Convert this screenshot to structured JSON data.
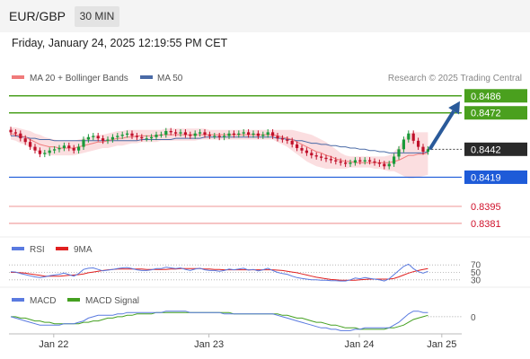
{
  "header": {
    "symbol": "EUR/GBP",
    "timeframe": "30 MIN",
    "datetime": "Friday, January 24, 2025 12:19:55 PM CET"
  },
  "legend": {
    "ma20_label": "MA 20 + Bollinger Bands",
    "ma50_label": "MA 50",
    "credit": "Research © 2025 Trading Central",
    "rsi_label": "RSI",
    "rsi_ma_label": "9MA",
    "macd_label": "MACD",
    "macd_signal_label": "MACD Signal"
  },
  "colors": {
    "bull": "#1a9a3a",
    "bear": "#c0102a",
    "ma20": "#f07a7a",
    "ma50": "#4a6aa6",
    "band_fill": "#f9d3d6",
    "green_level": "#4aa01e",
    "blue_level": "#1e5bd8",
    "red_level": "#f0a0a0",
    "red_text": "#d0102a",
    "price_box": "#2a2a2a",
    "arrow": "#2a5a9a",
    "rsi": "#5a7ae0",
    "rsi_ma": "#e02020",
    "macd": "#5a7ae0",
    "macd_signal": "#44a020"
  },
  "chart_data": {
    "type": "candlestick",
    "timeframe": "30 MIN",
    "x_tick_labels": [
      "Jan 22",
      "Jan 23",
      "Jan 24",
      "Jan 25"
    ],
    "ylim": [
      0.8375,
      0.8491
    ],
    "levels": {
      "resistance": [
        0.8486,
        0.8472
      ],
      "current": 0.8442,
      "pivot": 0.8419,
      "support": [
        0.8395,
        0.8381
      ]
    },
    "forecast_arrow": {
      "from": 0.8442,
      "to": 0.8486
    },
    "closes": [
      0.8456,
      0.8455,
      0.8451,
      0.8448,
      0.8444,
      0.8441,
      0.8438,
      0.8439,
      0.8441,
      0.8442,
      0.8443,
      0.8445,
      0.8443,
      0.8441,
      0.8444,
      0.845,
      0.8452,
      0.8453,
      0.8451,
      0.8449,
      0.845,
      0.8452,
      0.8453,
      0.8454,
      0.8455,
      0.8453,
      0.8452,
      0.8451,
      0.8451,
      0.8452,
      0.8454,
      0.8454,
      0.8457,
      0.8456,
      0.8455,
      0.8456,
      0.8454,
      0.8453,
      0.8455,
      0.8456,
      0.8454,
      0.8453,
      0.8453,
      0.8452,
      0.8453,
      0.8455,
      0.8454,
      0.8455,
      0.8456,
      0.8454,
      0.8455,
      0.8453,
      0.8454,
      0.8456,
      0.8453,
      0.8451,
      0.845,
      0.8449,
      0.8446,
      0.8443,
      0.8441,
      0.8439,
      0.8437,
      0.8436,
      0.8435,
      0.8434,
      0.8433,
      0.8432,
      0.8431,
      0.843,
      0.8431,
      0.8433,
      0.8432,
      0.8433,
      0.8432,
      0.8431,
      0.843,
      0.8428,
      0.843,
      0.8436,
      0.8442,
      0.845,
      0.8455,
      0.8449,
      0.8444,
      0.844,
      0.8442
    ],
    "ma20": [
      0.8455,
      0.8454,
      0.8453,
      0.8452,
      0.845,
      0.8448,
      0.8446,
      0.8445,
      0.8444,
      0.8444,
      0.8443,
      0.8443,
      0.8443,
      0.8443,
      0.8444,
      0.8445,
      0.8446,
      0.8447,
      0.8448,
      0.8448,
      0.8449,
      0.845,
      0.8451,
      0.8451,
      0.8452,
      0.8452,
      0.8453,
      0.8453,
      0.8453,
      0.8453,
      0.8453,
      0.8454,
      0.8454,
      0.8454,
      0.8454,
      0.8454,
      0.8454,
      0.8454,
      0.8454,
      0.8454,
      0.8454,
      0.8454,
      0.8454,
      0.8454,
      0.8454,
      0.8454,
      0.8454,
      0.8454,
      0.8454,
      0.8454,
      0.8454,
      0.8454,
      0.8454,
      0.8454,
      0.8454,
      0.8453,
      0.8452,
      0.8451,
      0.845,
      0.8448,
      0.8446,
      0.8444,
      0.8442,
      0.844,
      0.8439,
      0.8437,
      0.8436,
      0.8434,
      0.8433,
      0.8432,
      0.8432,
      0.8431,
      0.8431,
      0.8431,
      0.8431,
      0.8431,
      0.8431,
      0.8431,
      0.8431,
      0.8432,
      0.8433,
      0.8435,
      0.8437,
      0.8437,
      0.8438,
      0.8438,
      0.8439
    ],
    "bb_upper": [
      0.846,
      0.846,
      0.8459,
      0.8458,
      0.8457,
      0.8455,
      0.8454,
      0.8452,
      0.8451,
      0.845,
      0.8449,
      0.8449,
      0.8449,
      0.8449,
      0.845,
      0.8451,
      0.8452,
      0.8453,
      0.8454,
      0.8454,
      0.8455,
      0.8456,
      0.8457,
      0.8457,
      0.8458,
      0.8458,
      0.8458,
      0.8458,
      0.8458,
      0.8458,
      0.8458,
      0.8458,
      0.8459,
      0.8459,
      0.8459,
      0.8459,
      0.8459,
      0.8459,
      0.8459,
      0.8459,
      0.8459,
      0.8458,
      0.8458,
      0.8458,
      0.8458,
      0.8458,
      0.8458,
      0.8458,
      0.8458,
      0.8458,
      0.8458,
      0.8458,
      0.8458,
      0.8458,
      0.8458,
      0.8458,
      0.8458,
      0.8458,
      0.8458,
      0.8457,
      0.8456,
      0.8455,
      0.8454,
      0.8452,
      0.845,
      0.8448,
      0.8445,
      0.8442,
      0.8439,
      0.8437,
      0.8436,
      0.8436,
      0.8436,
      0.8436,
      0.8436,
      0.8436,
      0.8436,
      0.8436,
      0.8437,
      0.844,
      0.8444,
      0.845,
      0.8455,
      0.8456,
      0.8456,
      0.8456,
      0.8456
    ],
    "bb_lower": [
      0.845,
      0.8449,
      0.8447,
      0.8446,
      0.8443,
      0.8441,
      0.8439,
      0.8438,
      0.8437,
      0.8437,
      0.8437,
      0.8437,
      0.8437,
      0.8437,
      0.8438,
      0.8439,
      0.844,
      0.8441,
      0.8442,
      0.8443,
      0.8443,
      0.8444,
      0.8445,
      0.8445,
      0.8446,
      0.8447,
      0.8447,
      0.8448,
      0.8448,
      0.8448,
      0.8448,
      0.8449,
      0.8449,
      0.8449,
      0.8449,
      0.8449,
      0.8449,
      0.8449,
      0.8449,
      0.845,
      0.845,
      0.845,
      0.845,
      0.845,
      0.845,
      0.845,
      0.845,
      0.845,
      0.845,
      0.845,
      0.845,
      0.845,
      0.845,
      0.845,
      0.845,
      0.8448,
      0.8446,
      0.8444,
      0.8441,
      0.8438,
      0.8435,
      0.8432,
      0.843,
      0.8428,
      0.8427,
      0.8426,
      0.8426,
      0.8426,
      0.8426,
      0.8426,
      0.8427,
      0.8427,
      0.8427,
      0.8427,
      0.8427,
      0.8426,
      0.8426,
      0.8425,
      0.8424,
      0.8424,
      0.8422,
      0.842,
      0.8418,
      0.8418,
      0.8419,
      0.842,
      0.8421
    ],
    "ma50": [
      0.8453,
      0.8453,
      0.8452,
      0.8452,
      0.8451,
      0.8451,
      0.845,
      0.845,
      0.845,
      0.8449,
      0.8449,
      0.8449,
      0.8449,
      0.8449,
      0.8449,
      0.8449,
      0.8449,
      0.8449,
      0.8449,
      0.8449,
      0.8449,
      0.8449,
      0.8449,
      0.8449,
      0.8449,
      0.8449,
      0.8449,
      0.845,
      0.845,
      0.845,
      0.845,
      0.845,
      0.845,
      0.845,
      0.8451,
      0.8451,
      0.8451,
      0.8451,
      0.8451,
      0.8451,
      0.8452,
      0.8452,
      0.8452,
      0.8452,
      0.8452,
      0.8452,
      0.8452,
      0.8452,
      0.8452,
      0.8452,
      0.8452,
      0.8452,
      0.8452,
      0.8452,
      0.8452,
      0.8451,
      0.8451,
      0.845,
      0.845,
      0.8449,
      0.8449,
      0.8448,
      0.8447,
      0.8447,
      0.8446,
      0.8446,
      0.8445,
      0.8445,
      0.8444,
      0.8444,
      0.8443,
      0.8443,
      0.8442,
      0.8442,
      0.8441,
      0.8441,
      0.844,
      0.844,
      0.8439,
      0.8439,
      0.8439,
      0.8439,
      0.8439,
      0.8439,
      0.8439,
      0.8439,
      0.844
    ],
    "rsi": {
      "levels": [
        70,
        50,
        30
      ],
      "ylim": [
        20,
        80
      ],
      "values": [
        52,
        51,
        47,
        44,
        41,
        38,
        36,
        38,
        41,
        43,
        45,
        48,
        44,
        40,
        47,
        58,
        61,
        62,
        58,
        54,
        56,
        58,
        60,
        62,
        63,
        60,
        57,
        55,
        55,
        57,
        60,
        60,
        64,
        62,
        60,
        62,
        58,
        55,
        59,
        61,
        57,
        55,
        55,
        53,
        55,
        59,
        57,
        59,
        61,
        56,
        58,
        54,
        57,
        61,
        55,
        50,
        47,
        45,
        40,
        36,
        34,
        32,
        30,
        30,
        29,
        29,
        28,
        28,
        27,
        27,
        30,
        35,
        33,
        36,
        34,
        32,
        30,
        27,
        33,
        44,
        55,
        66,
        72,
        60,
        52,
        48,
        53
      ],
      "ma": [
        50,
        50,
        49,
        48,
        46,
        44,
        42,
        40,
        40,
        40,
        40,
        41,
        42,
        43,
        44,
        46,
        49,
        51,
        53,
        55,
        57,
        58,
        59,
        59,
        59,
        59,
        59,
        59,
        58,
        58,
        58,
        58,
        58,
        59,
        59,
        60,
        60,
        60,
        60,
        60,
        59,
        59,
        58,
        58,
        57,
        57,
        57,
        57,
        57,
        57,
        57,
        57,
        57,
        57,
        57,
        56,
        55,
        53,
        51,
        49,
        46,
        43,
        40,
        37,
        35,
        33,
        31,
        30,
        29,
        29,
        29,
        29,
        30,
        31,
        32,
        32,
        32,
        32,
        32,
        34,
        38,
        43,
        48,
        52,
        55,
        58,
        60
      ]
    },
    "macd": {
      "ylim": [
        -0.0011,
        0.0007
      ],
      "zero_label": "0",
      "macd": [
        0.0,
        -0.0001,
        -0.0002,
        -0.0003,
        -0.0004,
        -0.0005,
        -0.0006,
        -0.0006,
        -0.0006,
        -0.0006,
        -0.0006,
        -0.0005,
        -0.0005,
        -0.0005,
        -0.0004,
        -0.0003,
        -0.0001,
        0.0,
        0.0001,
        0.0001,
        0.0001,
        0.0001,
        0.0002,
        0.0002,
        0.0003,
        0.0003,
        0.0003,
        0.0003,
        0.0003,
        0.0003,
        0.0003,
        0.0003,
        0.0004,
        0.0004,
        0.0004,
        0.0004,
        0.0004,
        0.0003,
        0.0003,
        0.0003,
        0.0003,
        0.0003,
        0.0003,
        0.0003,
        0.0002,
        0.0002,
        0.0002,
        0.0002,
        0.0002,
        0.0002,
        0.0002,
        0.0002,
        0.0002,
        0.0002,
        0.0002,
        0.0001,
        0.0,
        -0.0001,
        -0.0002,
        -0.0003,
        -0.0004,
        -0.0005,
        -0.0006,
        -0.0007,
        -0.0008,
        -0.0008,
        -0.0009,
        -0.0009,
        -0.001,
        -0.001,
        -0.001,
        -0.0009,
        -0.0009,
        -0.0008,
        -0.0008,
        -0.0008,
        -0.0008,
        -0.0008,
        -0.0008,
        -0.0006,
        -0.0004,
        -0.0001,
        0.0002,
        0.0004,
        0.0004,
        0.0003,
        0.0003
      ],
      "signal": [
        0.0,
        0.0,
        -0.0001,
        -0.0001,
        -0.0002,
        -0.0003,
        -0.0003,
        -0.0004,
        -0.0004,
        -0.0005,
        -0.0005,
        -0.0005,
        -0.0005,
        -0.0005,
        -0.0005,
        -0.0004,
        -0.0004,
        -0.0003,
        -0.0003,
        -0.0002,
        -0.0001,
        -0.0001,
        0.0,
        0.0,
        0.0001,
        0.0001,
        0.0002,
        0.0002,
        0.0002,
        0.0002,
        0.0003,
        0.0003,
        0.0003,
        0.0003,
        0.0003,
        0.0003,
        0.0003,
        0.0003,
        0.0003,
        0.0003,
        0.0003,
        0.0003,
        0.0003,
        0.0003,
        0.0003,
        0.0003,
        0.0002,
        0.0002,
        0.0002,
        0.0002,
        0.0002,
        0.0002,
        0.0002,
        0.0002,
        0.0002,
        0.0002,
        0.0001,
        0.0001,
        0.0,
        -0.0001,
        -0.0001,
        -0.0002,
        -0.0003,
        -0.0004,
        -0.0004,
        -0.0005,
        -0.0006,
        -0.0006,
        -0.0007,
        -0.0008,
        -0.0008,
        -0.0008,
        -0.0009,
        -0.0009,
        -0.0009,
        -0.0009,
        -0.0009,
        -0.0009,
        -0.0008,
        -0.0008,
        -0.0007,
        -0.0006,
        -0.0004,
        -0.0002,
        -0.0001,
        0.0,
        0.0001
      ]
    }
  }
}
